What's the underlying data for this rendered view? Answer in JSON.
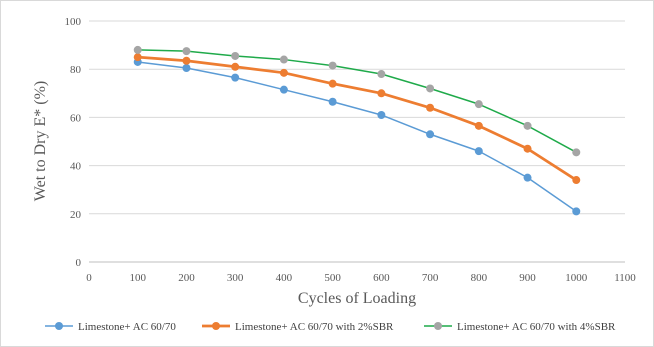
{
  "chart_data": {
    "type": "line",
    "title": "",
    "xlabel": "Cycles of Loading",
    "ylabel": "Wet to Dry E* (%)",
    "xlim": [
      0,
      1100
    ],
    "ylim": [
      0,
      100
    ],
    "x_ticks": [
      0,
      100,
      200,
      300,
      400,
      500,
      600,
      700,
      800,
      900,
      1000,
      1100
    ],
    "y_ticks": [
      0,
      20,
      40,
      60,
      80,
      100
    ],
    "grid": "horizontal",
    "legend_position": "bottom",
    "x": [
      100,
      200,
      300,
      400,
      500,
      600,
      700,
      800,
      900,
      1000
    ],
    "series": [
      {
        "name": "Limestone+ AC 60/70",
        "color": "#5b9bd5",
        "line_weight": "thin",
        "values": [
          83,
          80.5,
          76.5,
          71.5,
          66.5,
          61,
          53,
          46,
          35,
          21
        ]
      },
      {
        "name": "Limestone+ AC 60/70 with 2%SBR",
        "color": "#ed7d31",
        "line_weight": "thick",
        "values": [
          85,
          83.5,
          81,
          78.5,
          74,
          70,
          64,
          56.5,
          47,
          34
        ]
      },
      {
        "name": "Limestone+ AC 60/70 with 4%SBR",
        "color": "#a5a5a5",
        "line_color": "#1faa4a",
        "line_weight": "thin",
        "values": [
          88,
          87.5,
          85.5,
          84,
          81.5,
          78,
          72,
          65.5,
          56.5,
          45.5
        ]
      }
    ]
  }
}
